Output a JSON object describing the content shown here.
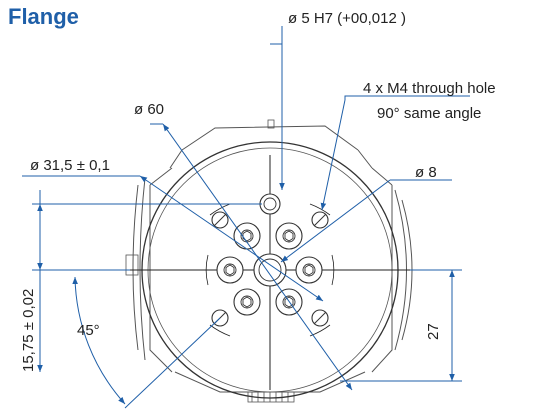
{
  "title": "Flange",
  "labels": {
    "pin_bore": "ø 5 H7 (+00,012 )",
    "through_hole_line1": "4 x M4 through hole",
    "through_hole_line2": "90° same angle",
    "bolt_circle": "ø 60",
    "pitch_circle": "ø 31,5 ± 0,1",
    "center_bore": "ø 8",
    "vertical_offset": "15,75 ± 0,02",
    "angle": "45°",
    "height": "27"
  },
  "colors": {
    "title": "#1f5fa8",
    "text": "#222222",
    "dimension_line": "#1f5fa8",
    "outline": "#555555"
  }
}
